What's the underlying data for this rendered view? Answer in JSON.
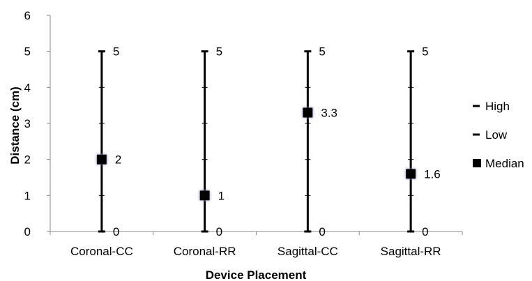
{
  "chart_data": {
    "type": "stock",
    "title": "",
    "xlabel": "Device Placement",
    "ylabel": "Distance (cm)",
    "ylim": [
      0,
      6
    ],
    "yticks": [
      "0",
      "1",
      "2",
      "3",
      "4",
      "5",
      "6"
    ],
    "categories": [
      "Coronal-CC",
      "Coronal-RR",
      "Sagittal-CC",
      "Sagittal-RR"
    ],
    "series": [
      {
        "name": "High",
        "values": [
          5,
          5,
          5,
          5
        ],
        "labels": [
          "5",
          "5",
          "5",
          "5"
        ],
        "marker": "dash"
      },
      {
        "name": "Low",
        "values": [
          0,
          0,
          0,
          0
        ],
        "labels": [
          "0",
          "0",
          "0",
          "0"
        ],
        "marker": "dash"
      },
      {
        "name": "Median",
        "values": [
          2,
          1,
          3.3,
          1.6
        ],
        "labels": [
          "2",
          "1",
          "3.3",
          "1.6"
        ],
        "marker": "square"
      }
    ],
    "legend_position": "right",
    "grid": false,
    "colors": {
      "mark": "#000000",
      "marker_glow": "#8a86b8"
    }
  }
}
